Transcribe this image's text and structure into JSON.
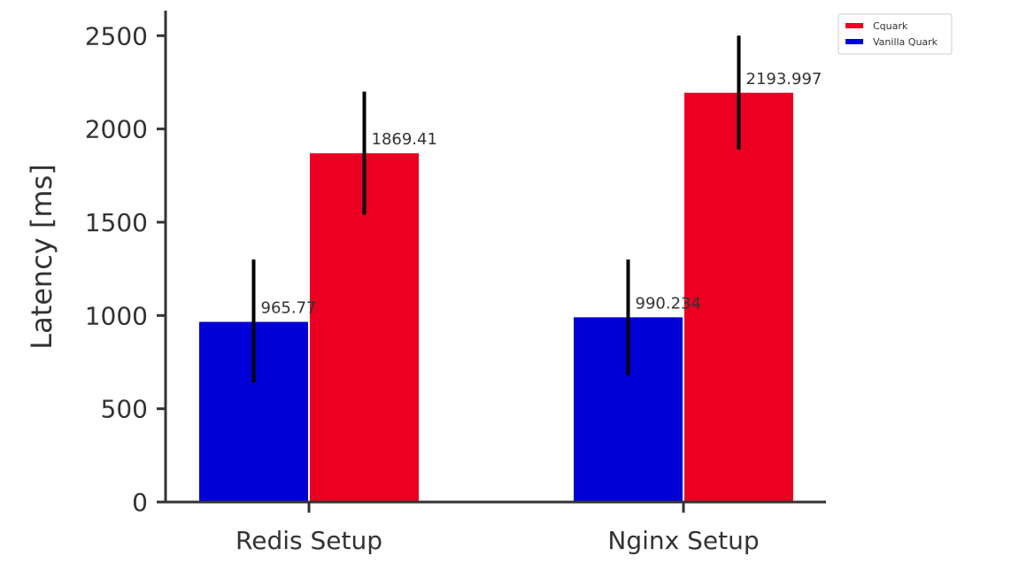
{
  "chart_data": {
    "type": "bar",
    "categories": [
      "Redis Setup",
      "Nginx Setup"
    ],
    "series": [
      {
        "name": "Vanilla Quark",
        "color": "#0000d6",
        "values": [
          965.77,
          990.234
        ],
        "labels": [
          "965.77",
          "990.234"
        ],
        "error_low": [
          640,
          680
        ],
        "error_high": [
          1300,
          1300
        ]
      },
      {
        "name": "Cquark",
        "color": "#eb0022",
        "values": [
          1869.41,
          2193.997
        ],
        "labels": [
          "1869.41",
          "2193.997"
        ],
        "error_low": [
          1540,
          1890
        ],
        "error_high": [
          2200,
          2500
        ]
      }
    ],
    "ylabel": "Latency [ms]",
    "xlabel": "",
    "ylim": [
      0,
      2620
    ],
    "yticks": [
      0,
      500,
      1000,
      1500,
      2000,
      2500
    ],
    "ytick_labels": [
      "0",
      "500",
      "1000",
      "1500",
      "2000",
      "2500"
    ],
    "grid": false,
    "legend_position": "top-right",
    "legend_order": [
      "Cquark",
      "Vanilla Quark"
    ]
  }
}
